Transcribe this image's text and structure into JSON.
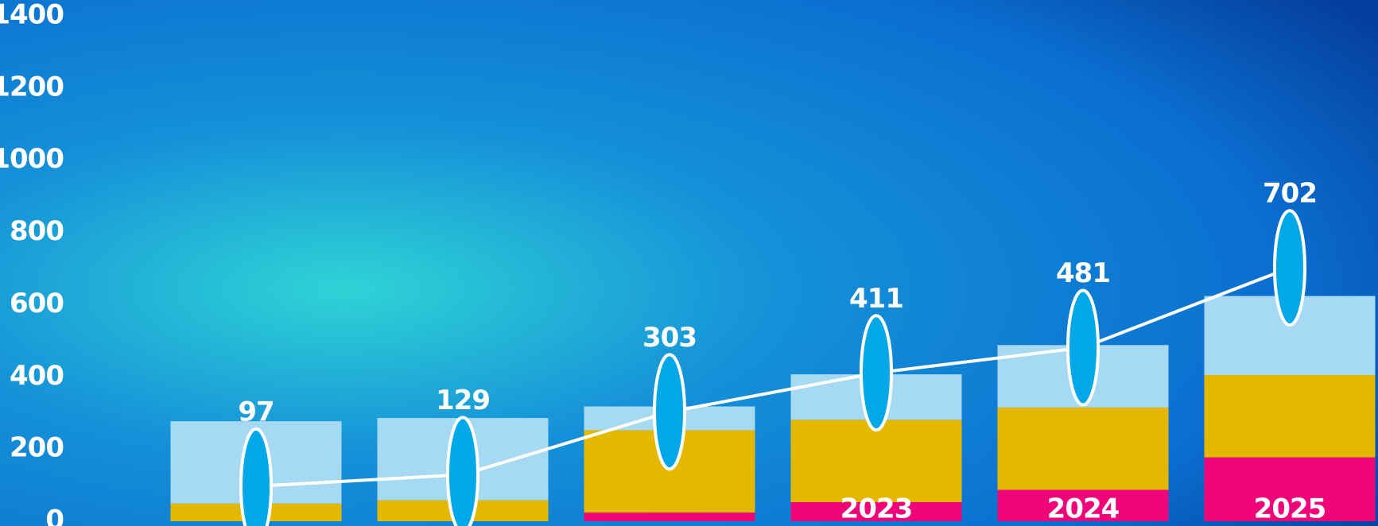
{
  "chart_data": {
    "type": "stacked-bar-line",
    "categories": [
      null,
      null,
      null,
      "2023",
      "2024",
      "2025"
    ],
    "series": [
      {
        "color": "#f0047a",
        "values": [
          0,
          0,
          24,
          53,
          87,
          177
        ]
      },
      {
        "color": "#e5b800",
        "values": [
          49,
          58,
          228,
          228,
          228,
          228
        ]
      },
      {
        "color": "#a6d9f2",
        "values": [
          228,
          228,
          66,
          126,
          173,
          219
        ]
      }
    ],
    "line": {
      "color": "#ffffff",
      "marker_color": "#00a8e8",
      "values": [
        97,
        129,
        303,
        411,
        481,
        702
      ]
    },
    "ylim": [
      0,
      1400
    ],
    "yticks": [
      0,
      200,
      400,
      600,
      800,
      1000,
      1200,
      1400
    ]
  }
}
